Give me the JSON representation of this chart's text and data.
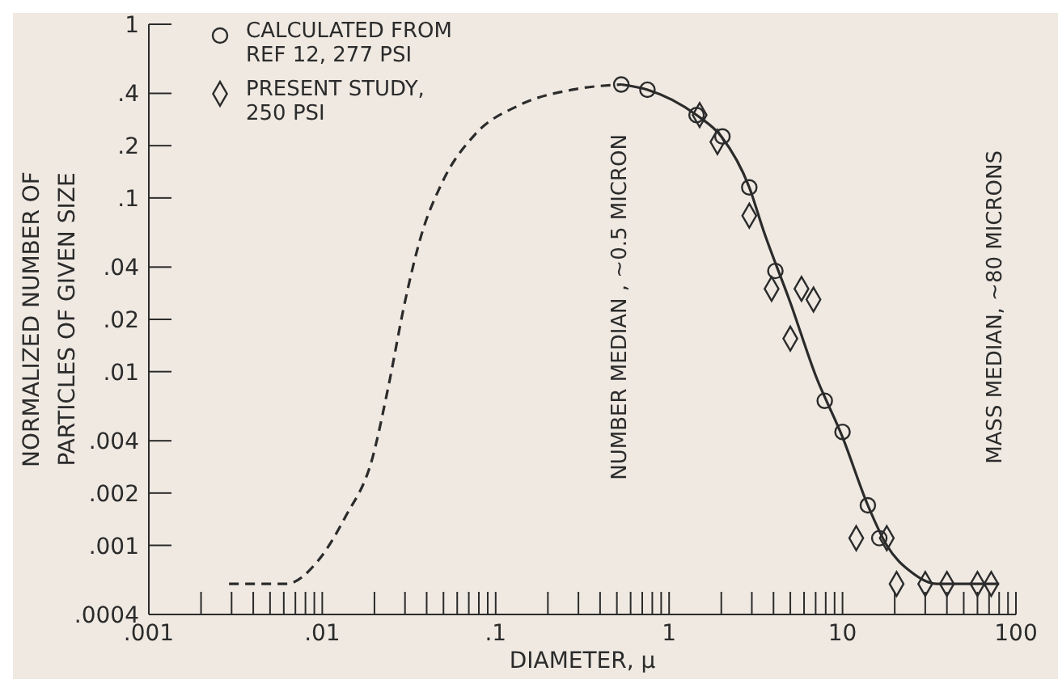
{
  "chart_data": {
    "type": "scatter",
    "xlabel": "DIAMETER, μ",
    "ylabel": "NORMALIZED NUMBER OF PARTICLES OF GIVEN SIZE",
    "log": "xy",
    "grid": false,
    "legend": "top left",
    "xlim": [
      0.001,
      100
    ],
    "ylim": [
      0.0004,
      1
    ],
    "xticks": [
      {
        "value": 0.001,
        "label": ".001"
      },
      {
        "value": 0.002,
        "label": null
      },
      {
        "value": 0.003,
        "label": null
      },
      {
        "value": 0.004,
        "label": null
      },
      {
        "value": 0.005,
        "label": null
      },
      {
        "value": 0.006,
        "label": null
      },
      {
        "value": 0.007,
        "label": null
      },
      {
        "value": 0.008,
        "label": null
      },
      {
        "value": 0.009,
        "label": null
      },
      {
        "value": 0.01,
        "label": ".01"
      },
      {
        "value": 0.02,
        "label": null
      },
      {
        "value": 0.03,
        "label": null
      },
      {
        "value": 0.04,
        "label": null
      },
      {
        "value": 0.05,
        "label": null
      },
      {
        "value": 0.06,
        "label": null
      },
      {
        "value": 0.07,
        "label": null
      },
      {
        "value": 0.08,
        "label": null
      },
      {
        "value": 0.09,
        "label": null
      },
      {
        "value": 0.1,
        "label": ".1"
      },
      {
        "value": 0.2,
        "label": null
      },
      {
        "value": 0.3,
        "label": null
      },
      {
        "value": 0.4,
        "label": null
      },
      {
        "value": 0.5,
        "label": null
      },
      {
        "value": 0.6,
        "label": null
      },
      {
        "value": 0.7,
        "label": null
      },
      {
        "value": 0.8,
        "label": null
      },
      {
        "value": 0.9,
        "label": null
      },
      1,
      {
        "value": 2,
        "label": null
      },
      {
        "value": 3,
        "label": null
      },
      {
        "value": 4,
        "label": null
      },
      {
        "value": 5,
        "label": null
      },
      {
        "value": 6,
        "label": null
      },
      {
        "value": 7,
        "label": null
      },
      {
        "value": 8,
        "label": null
      },
      {
        "value": 9,
        "label": null
      },
      10,
      {
        "value": 20,
        "label": null
      },
      {
        "value": 30,
        "label": null
      },
      {
        "value": 40,
        "label": null
      },
      {
        "value": 50,
        "label": null
      },
      {
        "value": 60,
        "label": null
      },
      {
        "value": 70,
        "label": null
      },
      {
        "value": 80,
        "label": null
      },
      {
        "value": 90,
        "label": null
      },
      100
    ],
    "yticks": [
      {
        "value": 0.0004,
        "label": ".0004"
      },
      {
        "value": 0.001,
        "label": ".001"
      },
      {
        "value": 0.002,
        "label": ".002"
      },
      {
        "value": 0.004,
        "label": ".004"
      },
      {
        "value": 0.01,
        "label": ".01"
      },
      {
        "value": 0.02,
        "label": ".02"
      },
      {
        "value": 0.04,
        "label": ".04"
      },
      {
        "value": 0.1,
        "label": ".1"
      },
      {
        "value": 0.2,
        "label": ".2"
      },
      {
        "value": 0.4,
        "label": ".4"
      },
      1
    ],
    "series": [
      {
        "type": "line",
        "line_style": "dashed",
        "marker": "none",
        "color": "#2b2b2b",
        "x": [
          0.0029,
          0.0062,
          0.0095,
          0.0136,
          0.0195,
          0.024,
          0.03,
          0.037,
          0.049,
          0.076,
          0.135,
          0.277,
          0.53
        ],
        "values": [
          0.0006,
          0.0006,
          0.00082,
          0.00146,
          0.0032,
          0.0081,
          0.0253,
          0.0596,
          0.122,
          0.232,
          0.34,
          0.42,
          0.45
        ]
      },
      {
        "type": "line",
        "line_style": "solid",
        "marker": "none",
        "color": "#2b2b2b",
        "x": [
          0.53,
          0.75,
          1.44,
          2,
          2.9,
          3.5,
          5,
          7,
          10,
          14,
          18,
          25,
          35,
          80
        ],
        "values": [
          0.45,
          0.42,
          0.3,
          0.226,
          0.115,
          0.065,
          0.025,
          0.0095,
          0.0042,
          0.0017,
          0.001,
          0.0007,
          0.0006,
          0.0006
        ]
      },
      {
        "name": "CALCULATED FROM REF 12, 277 PSI",
        "marker": "circle",
        "color": "#2b2b2b",
        "x": [
          0.53,
          0.75,
          1.44,
          2.03,
          2.9,
          4.1,
          7.9,
          10,
          14,
          16.3
        ],
        "values": [
          0.45,
          0.42,
          0.3,
          0.226,
          0.115,
          0.038,
          0.0068,
          0.0045,
          0.0017,
          0.0011
        ]
      },
      {
        "name": "PRESENT STUDY, 250 PSI",
        "marker": "diamond",
        "color": "#2b2b2b",
        "x": [
          1.5,
          1.9,
          2.9,
          3.9,
          5.8,
          6.8,
          5,
          12,
          18,
          20.5,
          30,
          40,
          60,
          72
        ],
        "values": [
          0.3,
          0.21,
          0.079,
          0.03,
          0.03,
          0.026,
          0.0155,
          0.0011,
          0.0011,
          0.0006,
          0.0006,
          0.0006,
          0.0006,
          0.0006
        ]
      }
    ],
    "annotations": [
      "NUMBER MEDIAN , ~0.5 MICRON",
      "MASS MEDIAN, ~80 MICRONS"
    ]
  }
}
